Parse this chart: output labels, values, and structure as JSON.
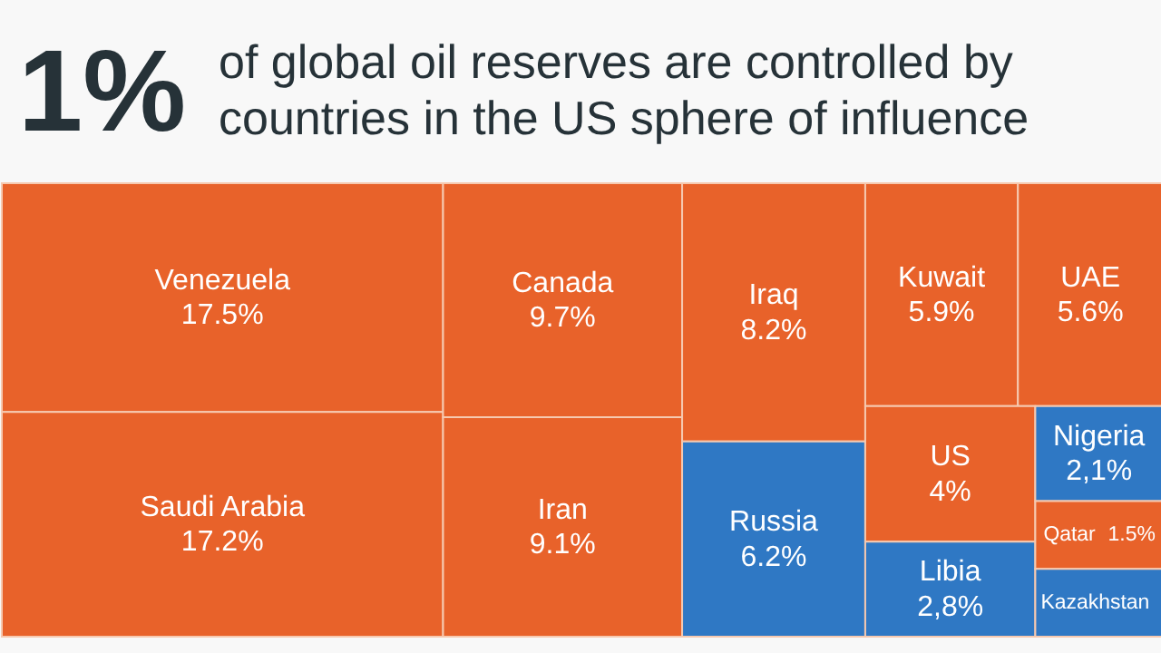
{
  "chart_data": {
    "type": "other",
    "title": "1%",
    "subtitle": "of global oil reserves are controlled by countries in the US sphere of influence",
    "categories": [
      "Venezuela",
      "Saudi Arabia",
      "Canada",
      "Iran",
      "Iraq",
      "Russia",
      "Kuwait",
      "UAE",
      "US",
      "Libia",
      "Nigeria",
      "Qatar",
      "Kazakhstan"
    ],
    "values": [
      17.5,
      17.2,
      9.7,
      9.1,
      8.2,
      6.2,
      5.9,
      5.6,
      4,
      2.8,
      2.1,
      1.5,
      null
    ],
    "value_labels": [
      "17.5%",
      "17.2%",
      "9.7%",
      "9.1%",
      "8.2%",
      "6.2%",
      "5.9%",
      "5.6%",
      "4%",
      "2,8%",
      "2,1%",
      "1.5%",
      null
    ],
    "colors": [
      "#e8622a",
      "#e8622a",
      "#e8622a",
      "#e8622a",
      "#e8622a",
      "#2f78c4",
      "#e8622a",
      "#e8622a",
      "#e8622a",
      "#2f78c4",
      "#2f78c4",
      "#e8622a",
      "#2f78c4"
    ]
  }
}
